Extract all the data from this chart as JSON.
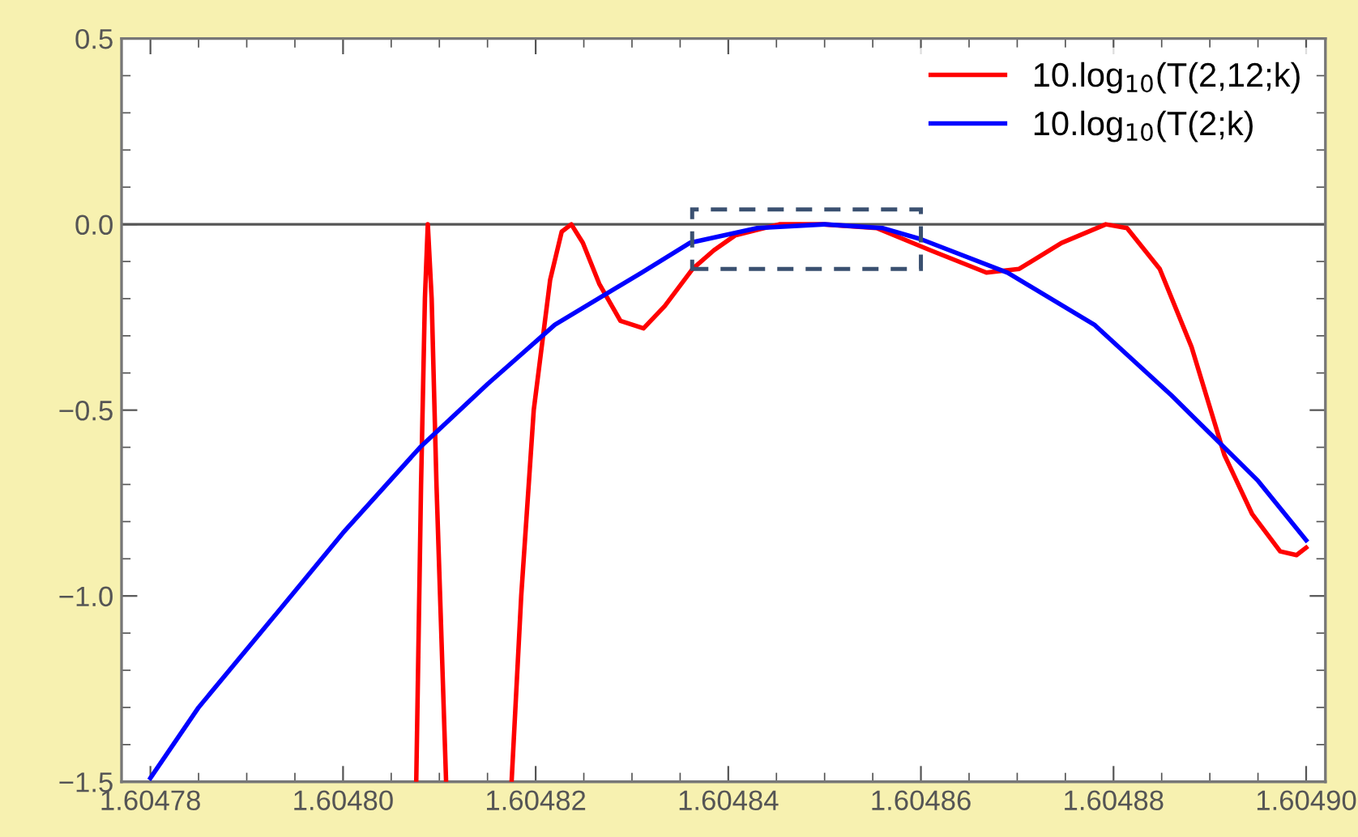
{
  "chart_data": {
    "type": "line",
    "series": [
      {
        "name": "10.log$_{10}$(T(2,12;k)",
        "color": "#ff0000",
        "x": [
          1.6048076,
          1.6048081,
          1.6048085,
          1.6048088,
          1.6048092,
          1.6048097,
          1.6048107,
          1.604814,
          1.6048175,
          1.6048185,
          1.6048198,
          1.6048215,
          1.6048227,
          1.6048237,
          1.6048249,
          1.6048266,
          1.6048288,
          1.6048312,
          1.6048334,
          1.6048363,
          1.6048385,
          1.6048407,
          1.6048453,
          1.6048498,
          1.6048554,
          1.604861,
          1.6048668,
          1.6048702,
          1.6048746,
          1.6048792,
          1.6048814,
          1.6048848,
          1.6048881,
          1.6048915,
          1.6048944,
          1.6048973,
          1.604899,
          1.6049
        ],
        "values": [
          -1.5,
          -0.7,
          -0.2,
          0.0,
          -0.2,
          -0.7,
          -1.5,
          null,
          -1.5,
          -1.0,
          -0.5,
          -0.15,
          -0.02,
          0.0,
          -0.05,
          -0.16,
          -0.26,
          -0.28,
          -0.22,
          -0.12,
          -0.07,
          -0.03,
          0.0,
          0.0,
          -0.01,
          -0.07,
          -0.13,
          -0.12,
          -0.05,
          0.0,
          -0.01,
          -0.12,
          -0.33,
          -0.62,
          -0.78,
          -0.88,
          -0.89,
          -0.87
        ]
      },
      {
        "name": "10.log$_{10}$(T(2;k)",
        "color": "#0000ff",
        "x": [
          1.60478,
          1.604785,
          1.604793,
          1.6048,
          1.604808,
          1.604815,
          1.604822,
          1.604831,
          1.604836,
          1.604843,
          1.60485,
          1.604856,
          1.60486,
          1.604869,
          1.604878,
          1.604886,
          1.604895,
          1.6049
        ],
        "values": [
          -1.49,
          -1.3,
          -1.05,
          -0.83,
          -0.6,
          -0.43,
          -0.27,
          -0.13,
          -0.05,
          -0.01,
          0.0,
          -0.01,
          -0.04,
          -0.13,
          -0.27,
          -0.46,
          -0.69,
          -0.85
        ]
      }
    ],
    "xlim": [
      1.604777,
      1.604902
    ],
    "xticks": [
      1.60478,
      {
        "value": 1.6048,
        "label": "1.60480"
      },
      1.60482,
      1.60484,
      1.60486,
      1.60488,
      {
        "value": 1.6049,
        "label": "1.60490"
      },
      {
        "value": 1.604785,
        "label": null
      },
      {
        "value": 1.60479,
        "label": null
      },
      {
        "value": 1.604795,
        "label": null
      },
      {
        "value": 1.604805,
        "label": null
      },
      {
        "value": 1.60481,
        "label": null
      },
      {
        "value": 1.604815,
        "label": null
      },
      {
        "value": 1.604825,
        "label": null
      },
      {
        "value": 1.60483,
        "label": null
      },
      {
        "value": 1.604835,
        "label": null
      },
      {
        "value": 1.604845,
        "label": null
      },
      {
        "value": 1.60485,
        "label": null
      },
      {
        "value": 1.604855,
        "label": null
      },
      {
        "value": 1.604865,
        "label": null
      },
      {
        "value": 1.60487,
        "label": null
      },
      {
        "value": 1.604875,
        "label": null
      },
      {
        "value": 1.604885,
        "label": null
      },
      {
        "value": 1.60489,
        "label": null
      },
      {
        "value": 1.604895,
        "label": null
      }
    ],
    "ylim": [
      -1.5,
      0.5
    ],
    "yticks": [
      0.5,
      {
        "value": 0.0,
        "label": "0.0"
      },
      {
        "value": -0.5,
        "label": "−0.5"
      },
      {
        "value": -1.0,
        "label": "−1.0"
      },
      {
        "value": -1.5,
        "label": "−1.5"
      },
      {
        "value": 0.4,
        "label": null
      },
      {
        "value": 0.3,
        "label": null
      },
      {
        "value": 0.2,
        "label": null
      },
      {
        "value": 0.1,
        "label": null
      },
      {
        "value": -0.1,
        "label": null
      },
      {
        "value": -0.2,
        "label": null
      },
      {
        "value": -0.3,
        "label": null
      },
      {
        "value": -0.4,
        "label": null
      },
      {
        "value": -0.6,
        "label": null
      },
      {
        "value": -0.7,
        "label": null
      },
      {
        "value": -0.8,
        "label": null
      },
      {
        "value": -0.9,
        "label": null
      },
      {
        "value": -1.1,
        "label": null
      },
      {
        "value": -1.2,
        "label": null
      },
      {
        "value": -1.3,
        "label": null
      },
      {
        "value": -1.4,
        "label": null
      }
    ],
    "ref_lines": [
      {
        "axis": "y",
        "value": 0,
        "label": null,
        "color": "#555555"
      }
    ],
    "legend": "top right",
    "grid": false,
    "line_style": "solid",
    "marker": "none"
  }
}
